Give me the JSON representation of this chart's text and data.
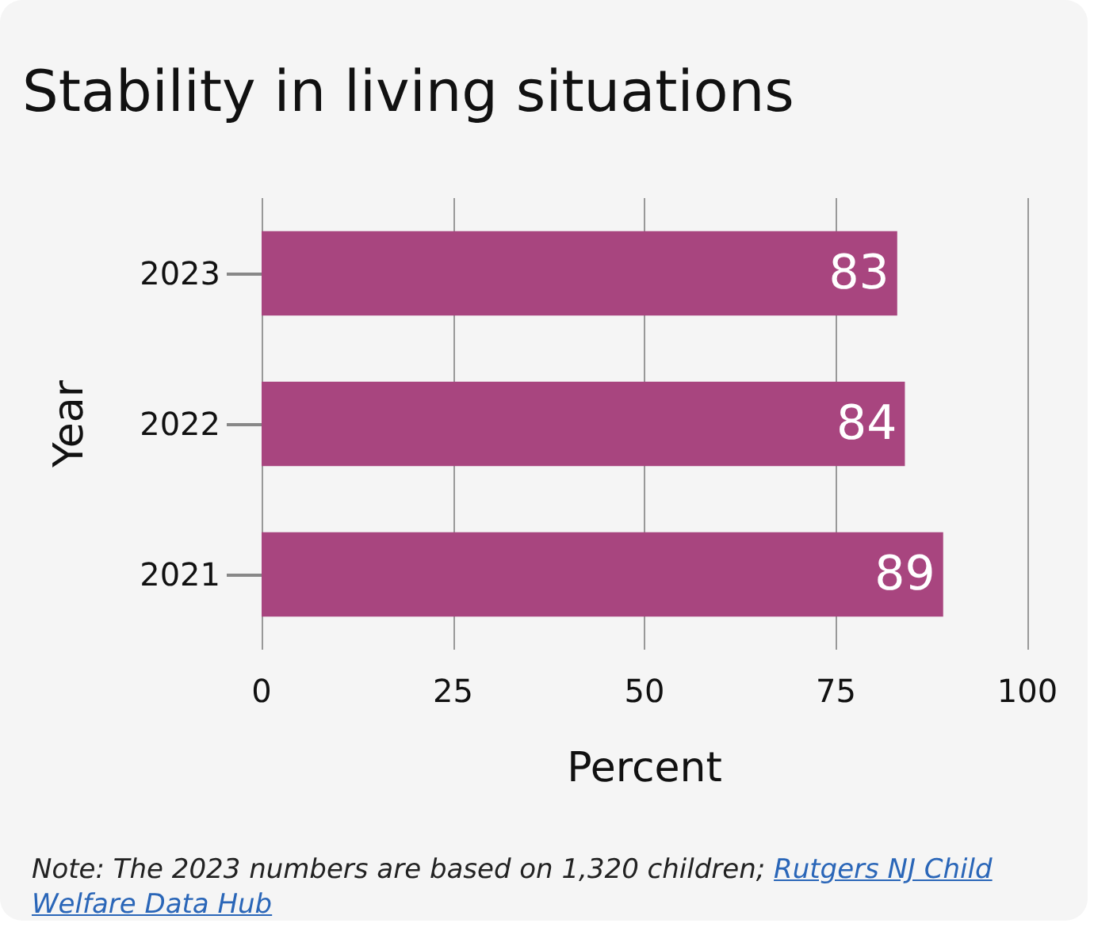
{
  "chart_data": {
    "type": "bar",
    "orientation": "horizontal",
    "title": "Stability in living situations",
    "xlabel": "Percent",
    "ylabel": "Year",
    "categories": [
      "2023",
      "2022",
      "2021"
    ],
    "values": [
      83,
      84,
      89
    ],
    "color": "#a8457f",
    "xlim": [
      0,
      100
    ],
    "xticks": [
      0,
      25,
      50,
      75,
      100
    ],
    "grid": "x",
    "data_labels": true,
    "annotations": [
      "Note:  The 2023 numbers are based on 1,320 children; ",
      "Rutgers NJ Child Welfare Data Hub"
    ]
  }
}
